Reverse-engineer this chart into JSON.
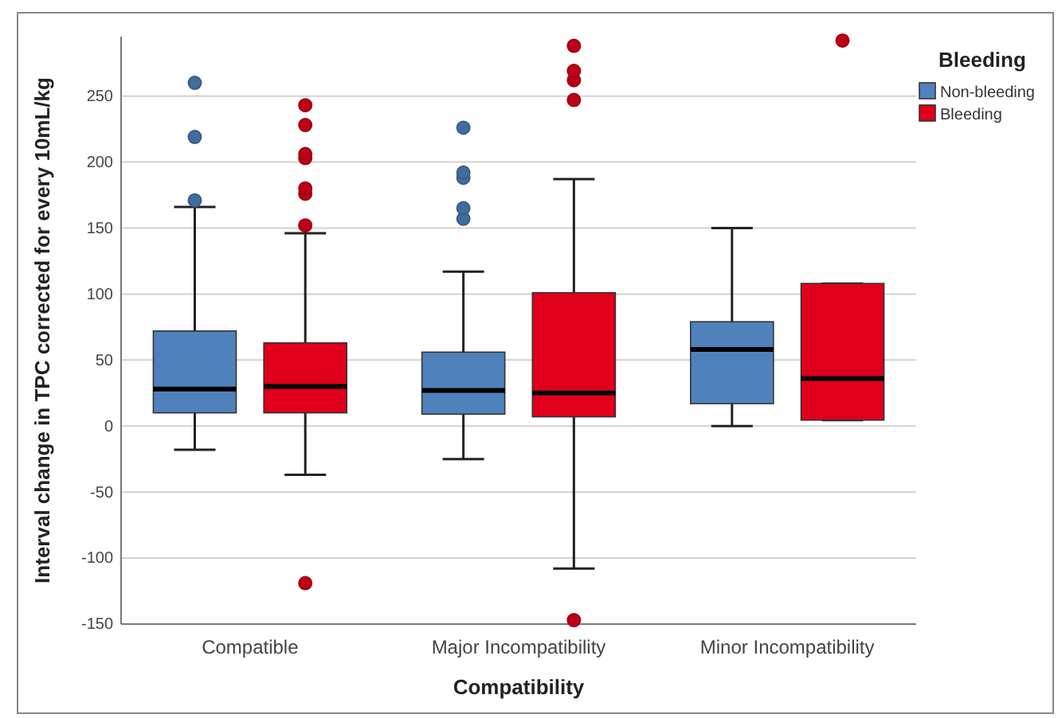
{
  "chart_data": {
    "type": "box",
    "xlabel": "Compatibility",
    "ylabel": "Interval change in TPC corrected for every 10mL/kg",
    "legend_title": "Bleeding",
    "legend": "top right",
    "grid": "y",
    "categories": [
      "Compatible",
      "Major Incompatibility",
      "Minor Incompatibility"
    ],
    "ylim": [
      -150,
      295
    ],
    "yticks": [
      -150,
      -100,
      -50,
      0,
      50,
      100,
      150,
      200,
      250
    ],
    "series": [
      {
        "name": "Non-bleeding",
        "color": "#4f81bd",
        "boxes": [
          {
            "low": -18,
            "q1": 10,
            "median": 28,
            "q3": 72,
            "high": 166,
            "outliers": [
              171,
              219,
              260
            ]
          },
          {
            "low": -25,
            "q1": 9,
            "median": 27,
            "q3": 56,
            "high": 117,
            "outliers": [
              157,
              165,
              188,
              192,
              226
            ]
          },
          {
            "low": 0,
            "q1": 17,
            "median": 58,
            "q3": 79,
            "high": 150
          }
        ]
      },
      {
        "name": "Bleeding",
        "color": "#e0001b",
        "boxes": [
          {
            "low": -37,
            "q1": 10,
            "median": 30,
            "q3": 63,
            "high": 146,
            "outliers": [
              -119,
              152,
              176,
              180,
              203,
              206,
              228,
              243
            ]
          },
          {
            "low": -108,
            "q1": 7,
            "median": 25,
            "q3": 101,
            "high": 187,
            "outliers": [
              -147,
              247,
              262,
              269,
              288
            ]
          },
          {
            "low": 4.5,
            "q1": 4.5,
            "median": 36,
            "q3": 108,
            "high": 108,
            "outliers": [
              292
            ]
          }
        ]
      }
    ]
  }
}
